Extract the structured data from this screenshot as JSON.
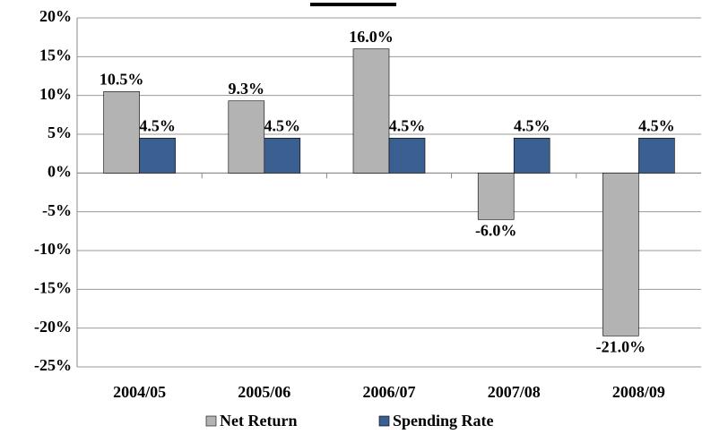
{
  "chart_data": {
    "type": "bar",
    "categories": [
      "2004/05",
      "2005/06",
      "2006/07",
      "2007/08",
      "2008/09"
    ],
    "series": [
      {
        "name": "Net Return",
        "color": "#b3b3b3",
        "values": [
          10.5,
          9.3,
          16.0,
          -6.0,
          -21.0
        ],
        "value_labels": [
          "10.5%",
          "9.3%",
          "16.0%",
          "-6.0%",
          "-21.0%"
        ]
      },
      {
        "name": "Spending Rate",
        "color": "#3a5f91",
        "values": [
          4.5,
          4.5,
          4.5,
          4.5,
          4.5
        ],
        "value_labels": [
          "4.5%",
          "4.5%",
          "4.5%",
          "4.5%",
          "4.5%"
        ]
      }
    ],
    "ylim": [
      -25,
      20
    ],
    "yticks": [
      {
        "value": -25,
        "label": "-25%"
      },
      {
        "value": -20,
        "label": "-20%"
      },
      {
        "value": -15,
        "label": "-15%"
      },
      {
        "value": -10,
        "label": "-10%"
      },
      {
        "value": -5,
        "label": "-5%"
      },
      {
        "value": 0,
        "label": "0%"
      },
      {
        "value": 5,
        "label": "5%"
      },
      {
        "value": 10,
        "label": "10%"
      },
      {
        "value": 15,
        "label": "15%"
      },
      {
        "value": 20,
        "label": "20%"
      }
    ],
    "grid": true,
    "legend": "bottom"
  }
}
